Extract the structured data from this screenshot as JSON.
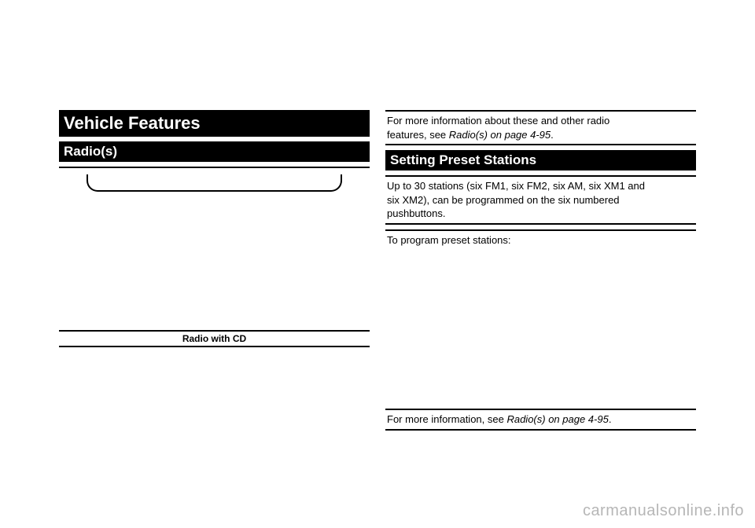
{
  "left": {
    "heading1": "Vehicle Features",
    "heading2": "Radio(s)",
    "caption": "Radio with CD"
  },
  "right": {
    "intro": {
      "line1": "For more information about these and other radio",
      "line2_pre": "features, see ",
      "line2_ref": "Radio(s) on page 4-95",
      "line2_post": "."
    },
    "heading": "Setting Preset Stations",
    "preset": {
      "line1": "Up to 30 stations (six FM1, six FM2, six AM, six XM1 and",
      "line2": "six XM2), can be programmed on the six numbered",
      "line3": "pushbuttons."
    },
    "program_label": "To program preset stations:",
    "moreinfo": {
      "pre": "For more information, see ",
      "ref": "Radio(s) on page 4-95",
      "post": "."
    }
  },
  "watermark": "carmanualsonline.info"
}
